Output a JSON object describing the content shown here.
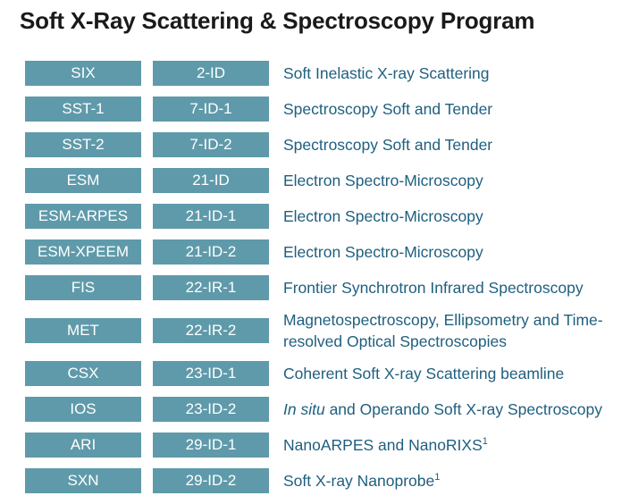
{
  "title": "Soft X-Ray Scattering & Spectroscopy Program",
  "rows": [
    {
      "abbrev": "SIX",
      "sector": "2-ID",
      "description": "Soft Inelastic X-ray Scattering"
    },
    {
      "abbrev": "SST-1",
      "sector": "7-ID-1",
      "description": "Spectroscopy Soft and Tender"
    },
    {
      "abbrev": "SST-2",
      "sector": "7-ID-2",
      "description": "Spectroscopy Soft and Tender"
    },
    {
      "abbrev": "ESM",
      "sector": "21-ID",
      "description": "Electron Spectro-Microscopy"
    },
    {
      "abbrev": "ESM-ARPES",
      "sector": "21-ID-1",
      "description": "Electron Spectro-Microscopy"
    },
    {
      "abbrev": "ESM-XPEEM",
      "sector": "21-ID-2",
      "description": "Electron Spectro-Microscopy"
    },
    {
      "abbrev": "FIS",
      "sector": "22-IR-1",
      "description": "Frontier Synchrotron Infrared Spectroscopy"
    },
    {
      "abbrev": "MET",
      "sector": "22-IR-2",
      "description": "Magnetospectroscopy, Ellipsometry and Time-resolved Optical Spectroscopies"
    },
    {
      "abbrev": "CSX",
      "sector": "23-ID-1",
      "description": "Coherent Soft X-ray Scattering beamline"
    },
    {
      "abbrev": "IOS",
      "sector": "23-ID-2",
      "description_italic": "In situ",
      "description": " and Operando Soft X-ray Spectroscopy"
    },
    {
      "abbrev": "ARI",
      "sector": "29-ID-1",
      "description": "NanoARPES and NanoRIXS",
      "footnote": "1"
    },
    {
      "abbrev": "SXN",
      "sector": "29-ID-2",
      "description": "Soft X-ray Nanoprobe",
      "footnote": "1"
    }
  ]
}
